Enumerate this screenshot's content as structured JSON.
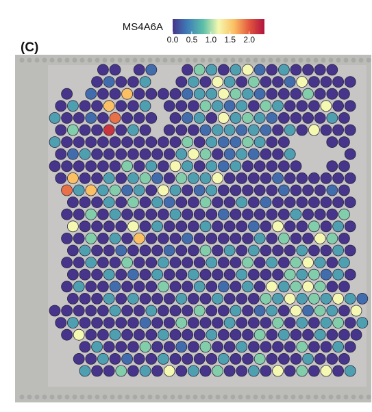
{
  "panel_label": "(C)",
  "chart_data": {
    "type": "spatial",
    "legend_title": "MS4A6A",
    "clim": [
      0,
      2.4
    ],
    "cticks": [
      {
        "value": 0,
        "label": "0.0"
      },
      {
        "value": 0.5,
        "label": "0.5"
      },
      {
        "value": 1,
        "label": "1.0"
      },
      {
        "value": 1.5,
        "label": "1.5"
      },
      {
        "value": 2,
        "label": "2.0"
      }
    ],
    "colormap": [
      "#46358a",
      "#3f7fb8",
      "#5cc0a8",
      "#f5f8b0",
      "#fbc063",
      "#e3573f",
      "#b0123f"
    ],
    "spot_values": [
      [
        null,
        null,
        null,
        null,
        0,
        0,
        null,
        0,
        0.3,
        null,
        null,
        0,
        0.9,
        0.6,
        0,
        0.6,
        1.2,
        0.3,
        0,
        0.6,
        0,
        0,
        0,
        0,
        null,
        null
      ],
      [
        null,
        null,
        null,
        0,
        0.3,
        0,
        0,
        0.6,
        null,
        null,
        0,
        0.6,
        0,
        1.2,
        0.6,
        0,
        0.9,
        0,
        0,
        0.3,
        1.2,
        0,
        0,
        0,
        0,
        null
      ],
      [
        null,
        0,
        null,
        0.3,
        0,
        0,
        1.6,
        0,
        0,
        0,
        0,
        0.3,
        0.6,
        0.6,
        1.2,
        0.9,
        0.6,
        0.3,
        0,
        0,
        0,
        0.9,
        0,
        0,
        0,
        null
      ],
      [
        0,
        0.6,
        0,
        0,
        1.6,
        0,
        0,
        0.6,
        null,
        0,
        0,
        0,
        0.9,
        0.6,
        0.3,
        0.6,
        0,
        0.9,
        0.6,
        0,
        0,
        0,
        1.2,
        0,
        0,
        null
      ],
      [
        0.6,
        0,
        0,
        0.3,
        0,
        1.9,
        0,
        0,
        0,
        null,
        0,
        0.3,
        0.6,
        0,
        1.2,
        0.6,
        0.9,
        0.6,
        0.3,
        0,
        0,
        0,
        0,
        0.6,
        0,
        null
      ],
      [
        0,
        0.9,
        0,
        0,
        2.2,
        0,
        0.6,
        0,
        null,
        0,
        0,
        0,
        0.3,
        0.6,
        0.6,
        0.3,
        0.6,
        0.3,
        0,
        0.6,
        0,
        1.2,
        0,
        0,
        0,
        null
      ],
      [
        0.6,
        0,
        0,
        0,
        0,
        0,
        0,
        0,
        0,
        0,
        0,
        0.9,
        0,
        0.6,
        0.3,
        0.3,
        0.9,
        0.6,
        0,
        0,
        null,
        null,
        null,
        0,
        0,
        null
      ],
      [
        0,
        0.3,
        0.6,
        0,
        0,
        0,
        0,
        0,
        0,
        0,
        0.6,
        1.2,
        0.9,
        0,
        0.3,
        0.6,
        0.3,
        0,
        0,
        0.6,
        null,
        null,
        null,
        null,
        0,
        null
      ],
      [
        0,
        0,
        0,
        0,
        0,
        0,
        0.9,
        0,
        0.6,
        0,
        1.2,
        0.6,
        0,
        0.6,
        0.3,
        0.6,
        0,
        0,
        0,
        0,
        0,
        null,
        null,
        0,
        0,
        null
      ],
      [
        0,
        1.6,
        0,
        0,
        0.6,
        0,
        0.6,
        0.9,
        0.3,
        0,
        0.9,
        0.6,
        0.6,
        1.2,
        0,
        0,
        0,
        0,
        0.3,
        0,
        0,
        0,
        0,
        0,
        0,
        null
      ],
      [
        null,
        1.9,
        0.6,
        1.6,
        0.6,
        0.9,
        0.3,
        0.6,
        0,
        1.2,
        0.6,
        0,
        0.3,
        0.6,
        0,
        0,
        0,
        0,
        0,
        0.3,
        0,
        0,
        0,
        0.3,
        0,
        null
      ],
      [
        null,
        0,
        0,
        0,
        0.6,
        0,
        0.9,
        0,
        0.6,
        0.3,
        0,
        0,
        0.9,
        0,
        0,
        0.6,
        0,
        0.3,
        0,
        0,
        0,
        0,
        0,
        0,
        0,
        null
      ],
      [
        null,
        0,
        0,
        0.9,
        0,
        0.6,
        0,
        0,
        0,
        0,
        0.6,
        0,
        0,
        0,
        0.3,
        0,
        0,
        0,
        0,
        0,
        0.6,
        0,
        0,
        0,
        0.9,
        null
      ],
      [
        null,
        1.2,
        0,
        0,
        0,
        0,
        1.2,
        0,
        0.6,
        0,
        0,
        0,
        0.6,
        0,
        0,
        0,
        0.3,
        0,
        1.2,
        0,
        0,
        0.9,
        0,
        0.6,
        0,
        null
      ],
      [
        null,
        0,
        0,
        0.9,
        0,
        0.6,
        0,
        1.6,
        0,
        0,
        0,
        0.3,
        0,
        0,
        0,
        0,
        0,
        0.6,
        0,
        0.9,
        0,
        0,
        1.2,
        0.9,
        0,
        null
      ],
      [
        null,
        0,
        0.6,
        0,
        0,
        0.3,
        0,
        0,
        0,
        0.3,
        0,
        0,
        0.9,
        0,
        0.6,
        0,
        0.6,
        0,
        0,
        0,
        0.6,
        0,
        0,
        0.6,
        0,
        null
      ],
      [
        null,
        0,
        0,
        0.6,
        0,
        0,
        0.9,
        0,
        0,
        0.6,
        0,
        0,
        0,
        0.6,
        0,
        0,
        0.9,
        0,
        0.6,
        0,
        0.9,
        1.2,
        0.6,
        0,
        0.6,
        null
      ],
      [
        null,
        0,
        0,
        0,
        0.6,
        0,
        0.3,
        0,
        0.6,
        0,
        0,
        0.6,
        0,
        0,
        0,
        0.6,
        0,
        0,
        0,
        0.9,
        0.6,
        0.9,
        0.3,
        0.6,
        0,
        null
      ],
      [
        null,
        0,
        0.6,
        0,
        0,
        0.3,
        0,
        0,
        0,
        0.9,
        0,
        0,
        0.6,
        0,
        0.3,
        0,
        0.6,
        0,
        1.2,
        0.6,
        0.9,
        1.2,
        0.9,
        0,
        0,
        null
      ],
      [
        null,
        0,
        0,
        0,
        0.6,
        0,
        0.6,
        0,
        0,
        0,
        0.6,
        0,
        0,
        0.6,
        0,
        0,
        0,
        0.9,
        0.6,
        1.2,
        0.6,
        0.9,
        0.6,
        1.2,
        0.6,
        0.3
      ],
      [
        0,
        0,
        0,
        0,
        0,
        0.6,
        0,
        0,
        0.6,
        0,
        0,
        0,
        0.9,
        0,
        0,
        0.6,
        0,
        0.3,
        0.6,
        0,
        1.2,
        0.3,
        0.9,
        0.6,
        0,
        1.2
      ],
      [
        0,
        0.6,
        0,
        0,
        0,
        0,
        0,
        0.3,
        0,
        0,
        0.9,
        0,
        0,
        0,
        0.6,
        0,
        0,
        0,
        0.9,
        0,
        0.6,
        0,
        0.6,
        0.9,
        0,
        0.6
      ],
      [
        null,
        0,
        1.2,
        0,
        0,
        0.6,
        0,
        0,
        0,
        0.6,
        0,
        0,
        0,
        0.6,
        0,
        0,
        0,
        0.9,
        0,
        0.6,
        0,
        0,
        0.6,
        0,
        0,
        0
      ],
      [
        null,
        null,
        0,
        0.6,
        0,
        0,
        0,
        0.9,
        0,
        0,
        0.3,
        0,
        0.9,
        0,
        0,
        0.6,
        0,
        0,
        0,
        0,
        0.9,
        0,
        0,
        0.6,
        0,
        null
      ],
      [
        null,
        null,
        0,
        0,
        0.6,
        0,
        0.3,
        0,
        0,
        0.6,
        0,
        0,
        0,
        0,
        0.6,
        0,
        0,
        0.9,
        0,
        0,
        0,
        0.6,
        0,
        0,
        0,
        null
      ],
      [
        null,
        null,
        0.6,
        0,
        0,
        0.9,
        0,
        0.6,
        0,
        1.2,
        0,
        0.6,
        0,
        0.9,
        0,
        0,
        0.6,
        0,
        1.2,
        0,
        0.9,
        0,
        1.2,
        0,
        0.6,
        null
      ]
    ]
  }
}
